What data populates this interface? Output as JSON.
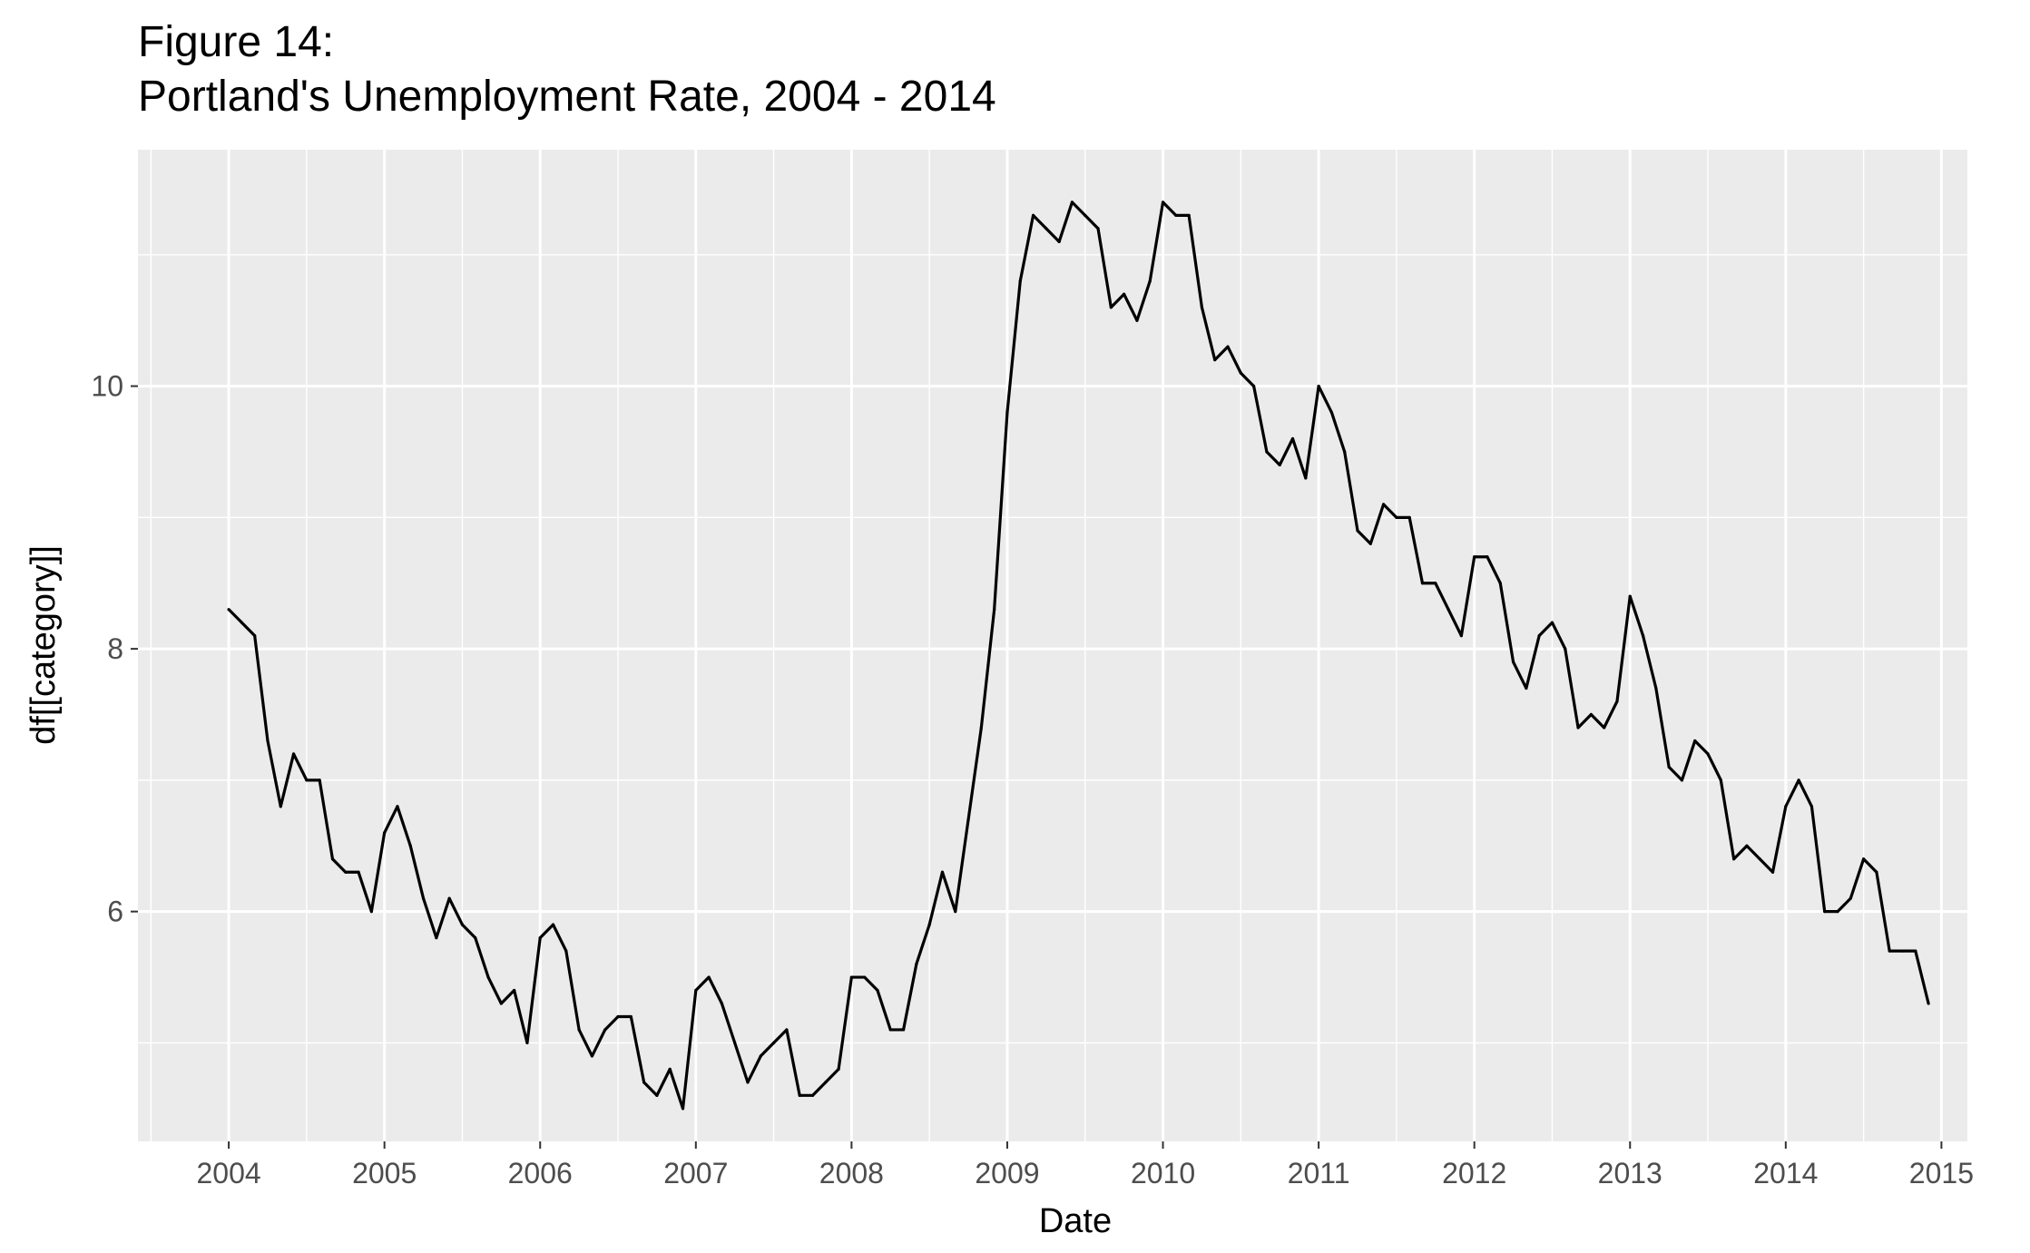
{
  "title_lines": [
    "Figure 14:",
    "Portland's Unemployment Rate, 2004 - 2014"
  ],
  "chart_data": {
    "type": "line",
    "title": "Figure 14: Portland's Unemployment Rate, 2004 - 2014",
    "xlabel": "Date",
    "ylabel": "df[[category]]",
    "x_ticks": [
      "2004",
      "2005",
      "2006",
      "2007",
      "2008",
      "2009",
      "2010",
      "2011",
      "2012",
      "2013",
      "2014",
      "2015"
    ],
    "y_ticks": [
      "6",
      "8",
      "10"
    ],
    "xlim": [
      "2003-06",
      "2015-03"
    ],
    "ylim": [
      4.25,
      11.8
    ],
    "grid": true,
    "colors": {
      "panel": "#ebebeb",
      "grid": "#ffffff",
      "line": "#000000"
    },
    "x_start": "2004-01",
    "x_step": "month",
    "values": [
      8.3,
      8.2,
      8.1,
      7.3,
      6.8,
      7.2,
      7.0,
      7.0,
      6.4,
      6.3,
      6.3,
      6.0,
      6.6,
      6.8,
      6.5,
      6.1,
      5.8,
      6.1,
      5.9,
      5.8,
      5.5,
      5.3,
      5.4,
      5.0,
      5.8,
      5.9,
      5.7,
      5.1,
      4.9,
      5.1,
      5.2,
      5.2,
      4.7,
      4.6,
      4.8,
      4.5,
      5.4,
      5.5,
      5.3,
      5.0,
      4.7,
      4.9,
      5.0,
      5.1,
      4.6,
      4.6,
      4.7,
      4.8,
      5.5,
      5.5,
      5.4,
      5.1,
      5.1,
      5.6,
      5.9,
      6.3,
      6.0,
      6.7,
      7.4,
      8.3,
      9.8,
      10.8,
      11.3,
      11.2,
      11.1,
      11.4,
      11.3,
      11.2,
      10.6,
      10.7,
      10.5,
      10.8,
      11.4,
      11.3,
      11.3,
      10.6,
      10.2,
      10.3,
      10.1,
      10.0,
      9.5,
      9.4,
      9.6,
      9.3,
      10.0,
      9.8,
      9.5,
      8.9,
      8.8,
      9.1,
      9.0,
      9.0,
      8.5,
      8.5,
      8.3,
      8.1,
      8.7,
      8.7,
      8.5,
      7.9,
      7.7,
      8.1,
      8.2,
      8.0,
      7.4,
      7.5,
      7.4,
      7.6,
      8.4,
      8.1,
      7.7,
      7.1,
      7.0,
      7.3,
      7.2,
      7.0,
      6.4,
      6.5,
      6.4,
      6.3,
      6.8,
      7.0,
      6.8,
      6.0,
      6.0,
      6.1,
      6.4,
      6.3,
      5.7,
      5.7,
      5.7,
      5.3
    ]
  }
}
